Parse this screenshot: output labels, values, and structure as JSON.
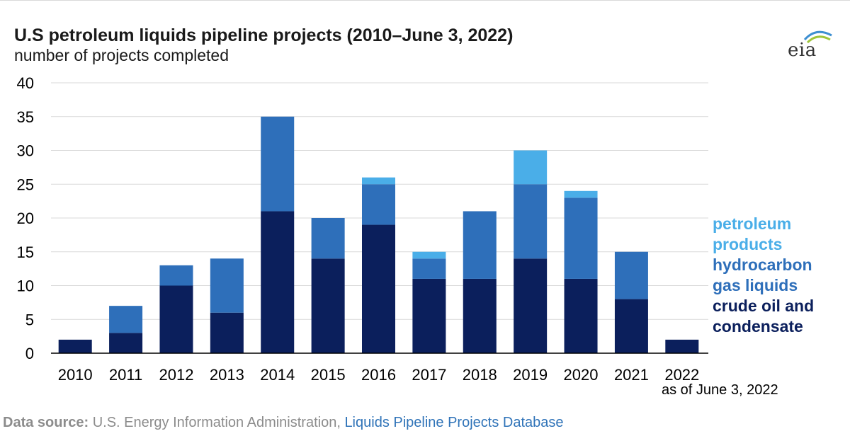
{
  "title": "U.S petroleum liquids pipeline projects (2010–June 3, 2022)",
  "subtitle": "number of projects completed",
  "logo": {
    "text": "eia",
    "icon": "eia-logo-icon",
    "accent": "#3d8fd1",
    "accent2": "#9fc63b"
  },
  "note": "as of June 3, 2022",
  "source": {
    "label": "Data source:",
    "text": "U.S. Energy Information Administration,",
    "link": "Liquids Pipeline Projects Database"
  },
  "colors": {
    "petroleum_products": "#4aaee8",
    "hydrocarbon_gas_liquids": "#2e6fba",
    "crude_oil_and_condensate": "#0b1f5c",
    "grid": "#d9d9d9",
    "axis": "#000000"
  },
  "chart_data": {
    "type": "bar",
    "stacked": true,
    "categories": [
      "2010",
      "2011",
      "2012",
      "2013",
      "2014",
      "2015",
      "2016",
      "2017",
      "2018",
      "2019",
      "2020",
      "2021",
      "2022"
    ],
    "series": [
      {
        "name": "crude oil and condensate",
        "color": "#0b1f5c",
        "values": [
          2,
          3,
          10,
          6,
          21,
          14,
          19,
          11,
          11,
          14,
          11,
          8,
          2
        ]
      },
      {
        "name": "hydrocarbon gas liquids",
        "color": "#2e6fba",
        "values": [
          0,
          4,
          3,
          8,
          14,
          6,
          6,
          3,
          10,
          11,
          12,
          7,
          0
        ]
      },
      {
        "name": "petroleum products",
        "color": "#4aaee8",
        "values": [
          0,
          0,
          0,
          0,
          0,
          0,
          1,
          1,
          0,
          5,
          1,
          0,
          0
        ]
      }
    ],
    "yticks": [
      "0",
      "5",
      "10",
      "15",
      "20",
      "25",
      "30",
      "35",
      "40"
    ],
    "ylim": [
      0,
      40
    ],
    "grid": true,
    "legend": {
      "placement": "right",
      "items": [
        {
          "label": "petroleum\nproducts",
          "color": "#4aaee8"
        },
        {
          "label": "hydrocarbon\ngas liquids",
          "color": "#2e6fba"
        },
        {
          "label": "crude oil and\ncondensate",
          "color": "#0b1f5c"
        }
      ]
    }
  }
}
